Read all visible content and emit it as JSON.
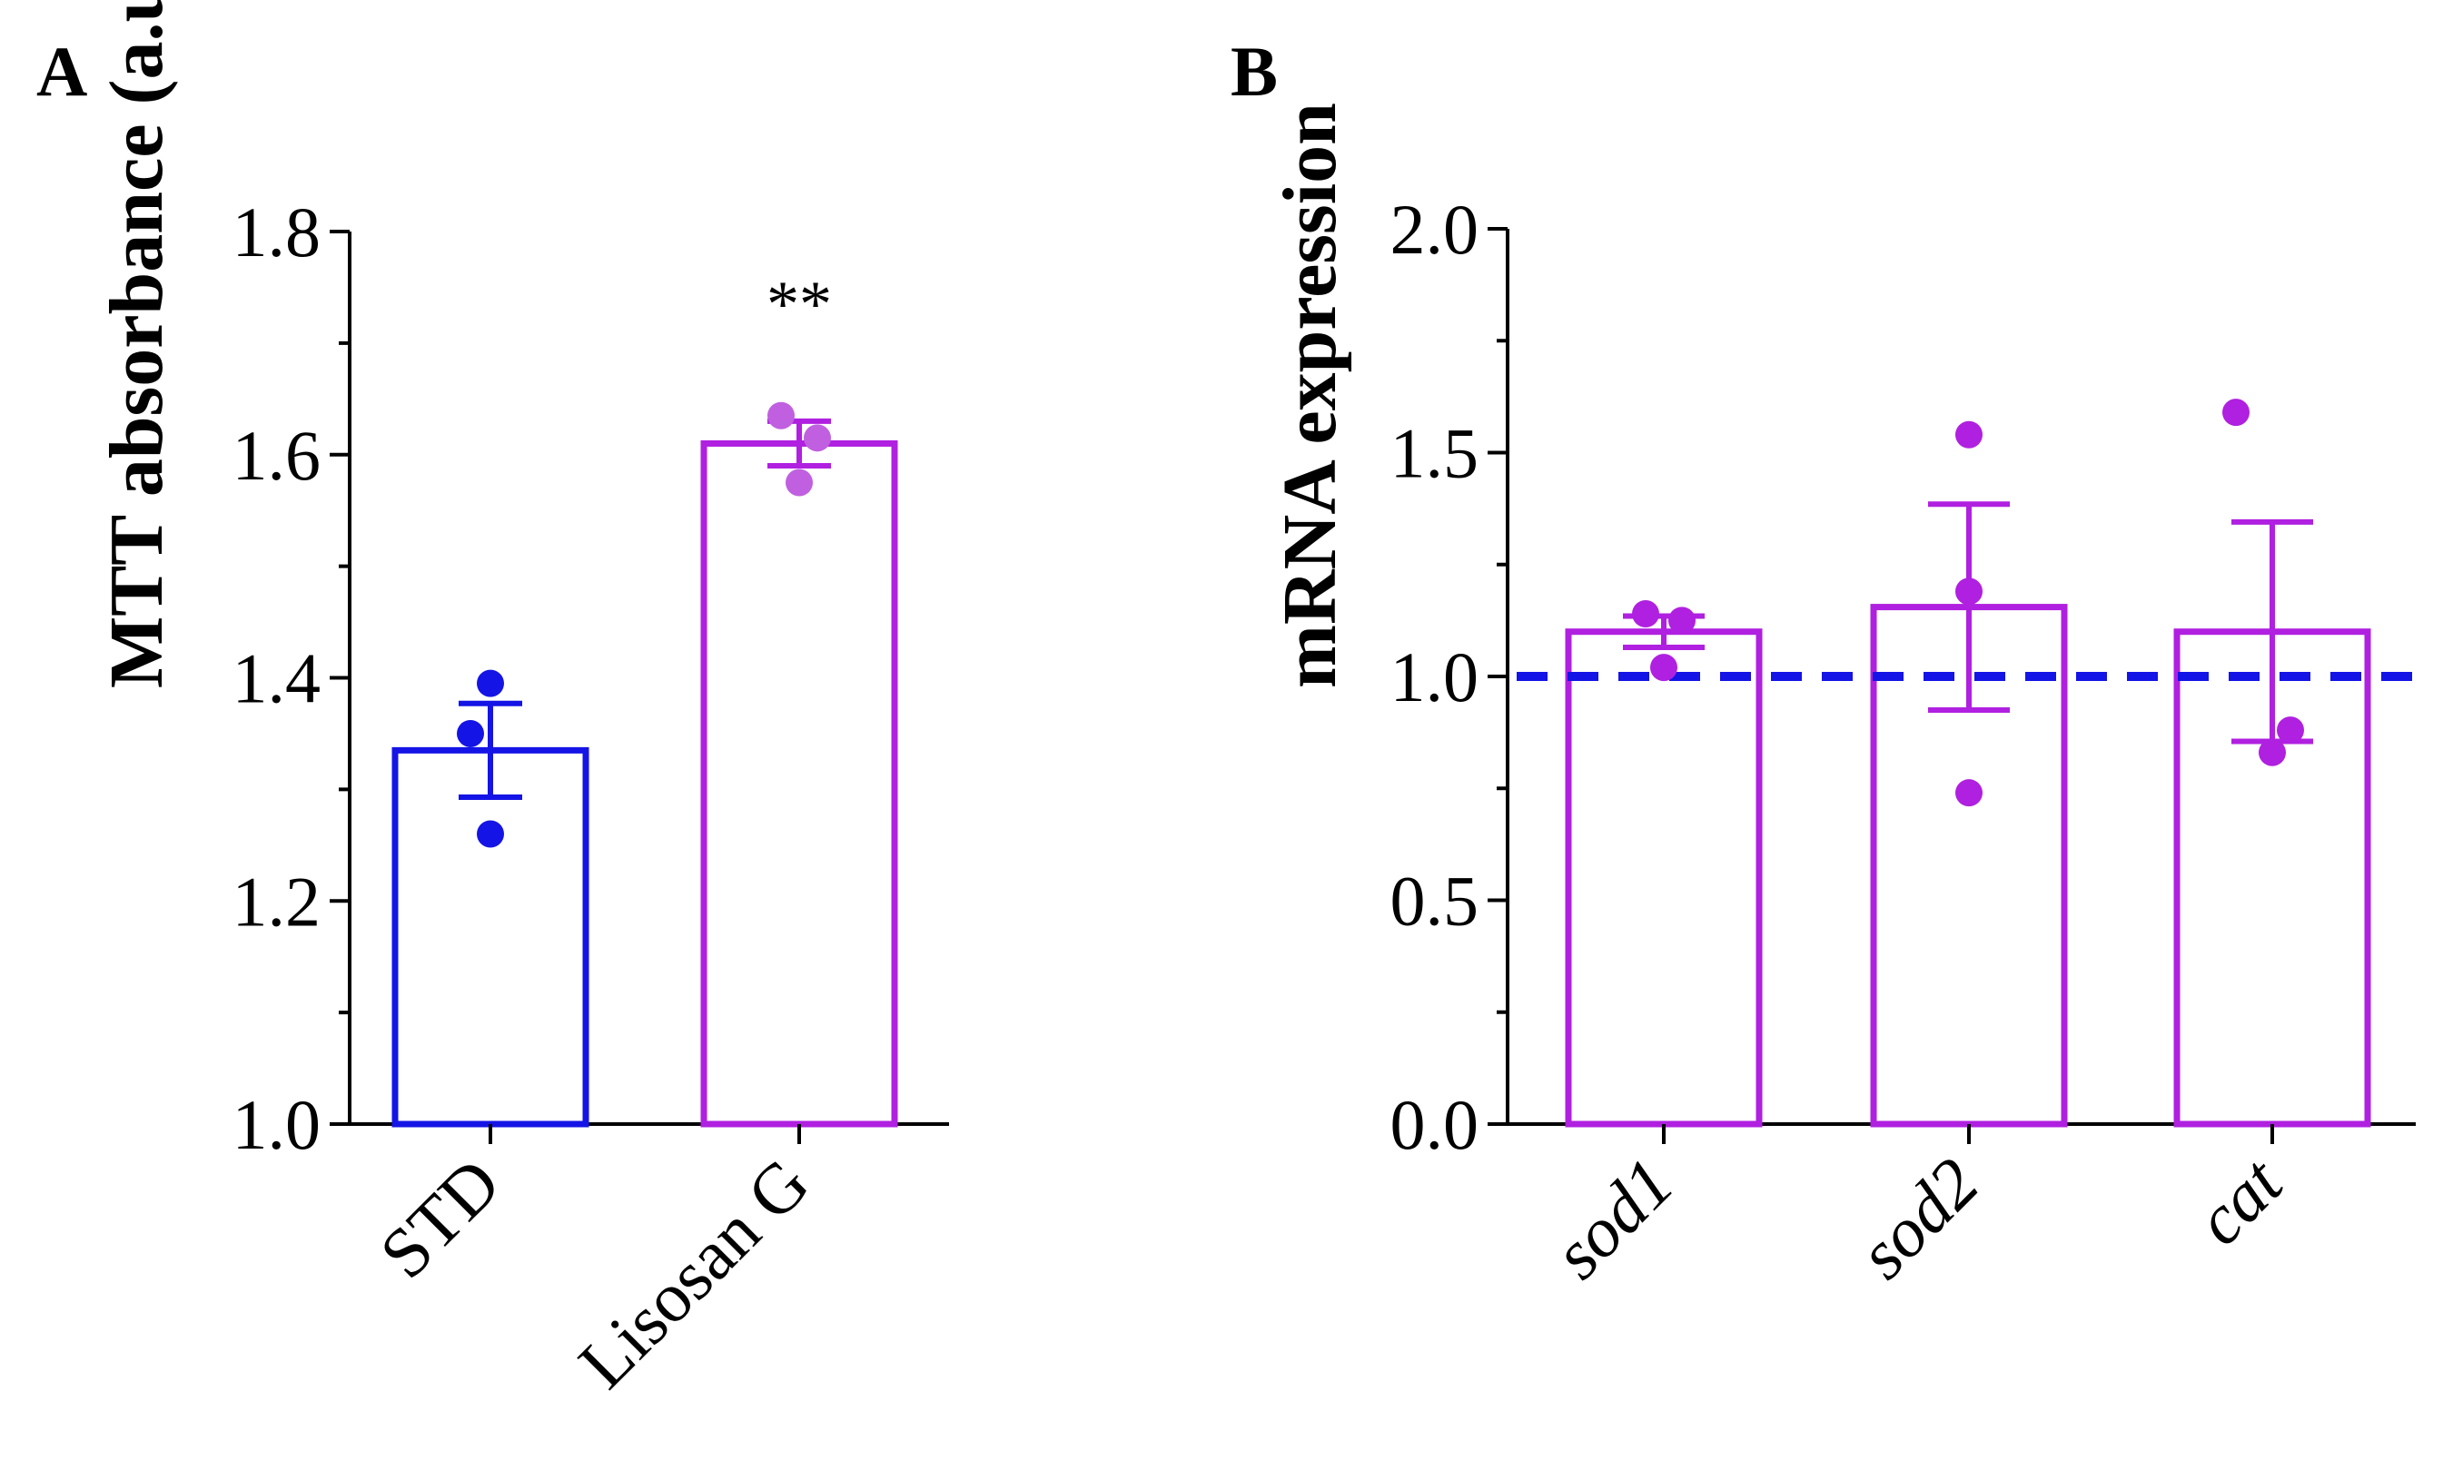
{
  "panels": [
    {
      "label": "A",
      "chart_data": {
        "type": "bar",
        "categories": [
          "STD",
          "Lisosan G"
        ],
        "values": [
          1.335,
          1.61
        ],
        "errors": [
          0.042,
          0.02
        ],
        "points": [
          [
            1.395,
            1.35,
            1.26
          ],
          [
            1.635,
            1.615,
            1.575
          ]
        ],
        "colors": [
          "#1414e6",
          "#b020e0"
        ],
        "point_colors": [
          "#1414e6",
          "#c060e0"
        ],
        "annotations": [
          "",
          "**"
        ],
        "title": "",
        "xlabel": "",
        "ylabel": "MTT absorbance (a.u.)",
        "ylim": [
          1.0,
          1.8
        ],
        "yticks": [
          1.0,
          1.2,
          1.4,
          1.6,
          1.8
        ],
        "ytick_labels": [
          "1.0",
          "1.2",
          "1.4",
          "1.6",
          "1.8"
        ],
        "grid": false,
        "legend": "none"
      }
    },
    {
      "label": "B",
      "chart_data": {
        "type": "bar",
        "categories": [
          "sod1",
          "sod2",
          "cat"
        ],
        "values": [
          1.1,
          1.155,
          1.1
        ],
        "errors": [
          0.035,
          0.23,
          0.245
        ],
        "points": [
          [
            1.14,
            1.125,
            1.02
          ],
          [
            1.54,
            1.19,
            0.74
          ],
          [
            1.59,
            0.88,
            0.83
          ]
        ],
        "colors": [
          "#b020e0",
          "#b020e0",
          "#b020e0"
        ],
        "point_colors": [
          "#b020e0",
          "#b020e0",
          "#b020e0"
        ],
        "reference_line": {
          "y": 1.0,
          "color": "#1414e6",
          "style": "dashed"
        },
        "title": "",
        "xlabel": "",
        "ylabel": "mRNA expression",
        "ylim": [
          0.0,
          2.0
        ],
        "yticks": [
          0.0,
          0.5,
          1.0,
          1.5,
          2.0
        ],
        "ytick_labels": [
          "0.0",
          "0.5",
          "1.0",
          "1.5",
          "2.0"
        ],
        "grid": false,
        "legend": "none"
      }
    }
  ]
}
